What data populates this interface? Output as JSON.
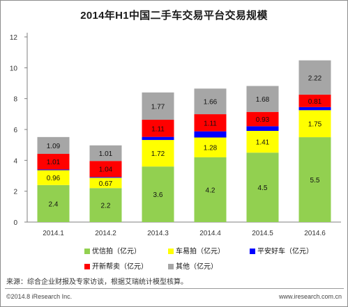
{
  "title": "2014年H1中国二手车交易平台交易规模",
  "chart_data": {
    "type": "bar",
    "stacked": true,
    "categories": [
      "2014.1",
      "2014.2",
      "2014.3",
      "2014.4",
      "2014.5",
      "2014.6"
    ],
    "ylim": [
      0,
      12
    ],
    "yticks": [
      0,
      2,
      4,
      6,
      8,
      10,
      12
    ],
    "grid": false,
    "legend_position": "bottom",
    "series": [
      {
        "name": "优信拍（亿元）",
        "color": "#92d050",
        "values": [
          2.4,
          2.2,
          3.6,
          4.2,
          4.5,
          5.5
        ],
        "labels": [
          "2.4",
          "2.2",
          "3.6",
          "4.2",
          "4.5",
          "5.5"
        ]
      },
      {
        "name": "车易拍（亿元）",
        "color": "#ffff00",
        "values": [
          0.96,
          0.67,
          1.72,
          1.28,
          1.41,
          1.75
        ],
        "labels": [
          "0.96",
          "0.67",
          "1.72",
          "1.28",
          "1.41",
          "1.75"
        ]
      },
      {
        "name": "平安好车（亿元）",
        "color": "#0000ff",
        "values": [
          0.05,
          0.05,
          0.2,
          0.4,
          0.3,
          0.2
        ],
        "labels": []
      },
      {
        "name": "开新帮卖（亿元）",
        "color": "#ff0000",
        "values": [
          1.01,
          1.04,
          1.11,
          1.11,
          0.93,
          0.81
        ],
        "labels": [
          "1.01",
          "1.04",
          "1.11",
          "1.11",
          "0.93",
          "0.81"
        ]
      },
      {
        "name": "其他（亿元）",
        "color": "#a6a6a6",
        "values": [
          1.09,
          1.01,
          1.77,
          1.66,
          1.68,
          2.22
        ],
        "labels": [
          "1.09",
          "1.01",
          "1.77",
          "1.66",
          "1.68",
          "2.22"
        ]
      }
    ]
  },
  "footer": {
    "source": "来源：综合企业财报及专家访谈，根据艾瑞统计模型核算。",
    "copyright": "©2014.8 iResearch Inc.",
    "website": "www.iresearch.com.cn"
  }
}
